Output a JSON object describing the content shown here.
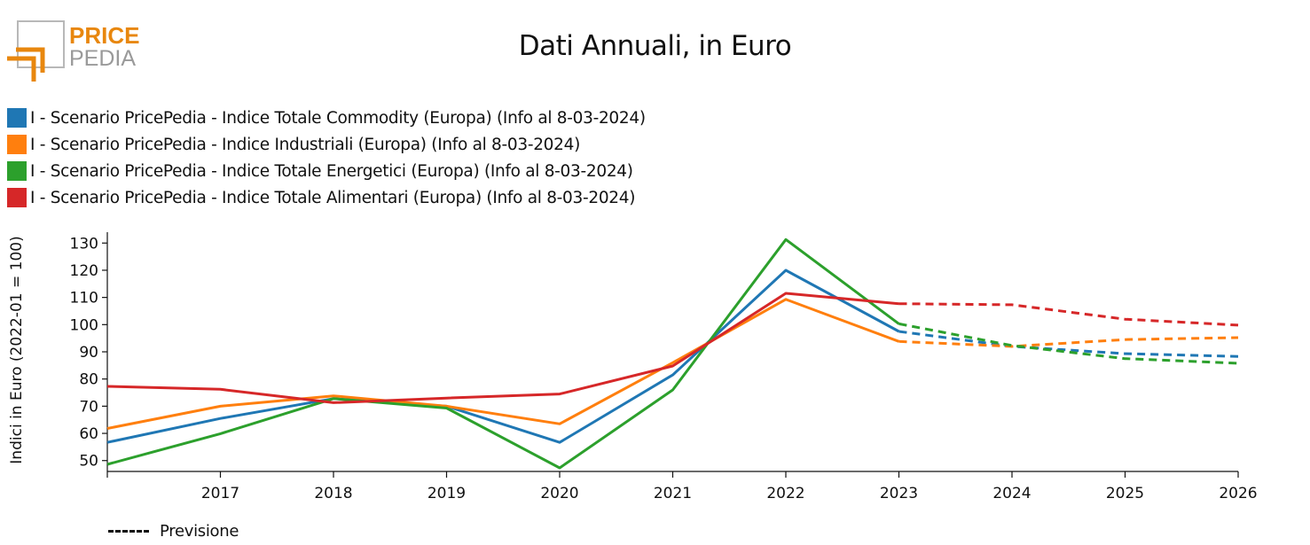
{
  "logo": {
    "text_top": "PRICE",
    "text_bottom": "PEDIA",
    "color": "#e8870e"
  },
  "forecast_label": "Previsione",
  "chart_data": {
    "type": "line",
    "title": "Dati Annuali, in Euro",
    "xlabel": "",
    "ylabel": "Indici in Euro (2022-01 = 100)",
    "x": [
      2016,
      2017,
      2018,
      2019,
      2020,
      2021,
      2022,
      2023,
      2024,
      2025,
      2026
    ],
    "xlim": [
      2016,
      2026
    ],
    "ylim": [
      46,
      134
    ],
    "x_ticks": [
      2017,
      2018,
      2019,
      2020,
      2021,
      2022,
      2023,
      2024,
      2025,
      2026
    ],
    "y_ticks": [
      50,
      60,
      70,
      80,
      90,
      100,
      110,
      120,
      130
    ],
    "forecast_from": 2023,
    "grid": false,
    "legend_position": "top-left",
    "series": [
      {
        "name": "I - Scenario PricePedia - Indice Totale Commodity (Europa) (Info al 8-03-2024)",
        "color": "#1f77b4",
        "values": [
          56.7,
          65.5,
          72.8,
          70.0,
          56.7,
          81.5,
          120.0,
          97.5,
          92.0,
          89.3,
          88.3
        ]
      },
      {
        "name": "I - Scenario PricePedia - Indice Industriali (Europa) (Info al 8-03-2024)",
        "color": "#ff7f0e",
        "values": [
          61.8,
          70.0,
          73.8,
          70.0,
          63.5,
          86.0,
          109.3,
          93.8,
          92.0,
          94.5,
          95.2
        ]
      },
      {
        "name": "I - Scenario PricePedia - Indice Totale Energetici (Europa) (Info al 8-03-2024)",
        "color": "#2ca02c",
        "values": [
          48.6,
          59.9,
          72.8,
          69.3,
          47.3,
          76.0,
          131.3,
          100.3,
          92.3,
          87.5,
          85.8
        ]
      },
      {
        "name": "I - Scenario PricePedia - Indice Totale Alimentari (Europa) (Info al 8-03-2024)",
        "color": "#d62728",
        "values": [
          77.3,
          76.2,
          71.3,
          73.0,
          74.5,
          84.8,
          111.5,
          107.7,
          107.3,
          102.0,
          99.8
        ]
      }
    ]
  }
}
